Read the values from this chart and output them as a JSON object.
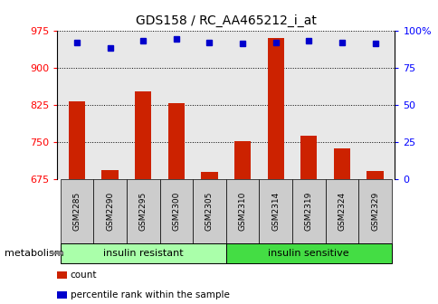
{
  "title": "GDS158 / RC_AA465212_i_at",
  "samples": [
    "GSM2285",
    "GSM2290",
    "GSM2295",
    "GSM2300",
    "GSM2305",
    "GSM2310",
    "GSM2314",
    "GSM2319",
    "GSM2324",
    "GSM2329"
  ],
  "counts": [
    833,
    693,
    853,
    828,
    690,
    752,
    960,
    762,
    737,
    692
  ],
  "percentiles": [
    92,
    88,
    93,
    94,
    92,
    91,
    92,
    93,
    92,
    91
  ],
  "ylim_left": [
    675,
    975
  ],
  "ylim_right": [
    0,
    100
  ],
  "yticks_left": [
    675,
    750,
    825,
    900,
    975
  ],
  "yticks_right": [
    0,
    25,
    50,
    75,
    100
  ],
  "groups": [
    {
      "label": "insulin resistant",
      "start": 0,
      "end": 5,
      "color": "#aaffaa"
    },
    {
      "label": "insulin sensitive",
      "start": 5,
      "end": 10,
      "color": "#44dd44"
    }
  ],
  "bar_color": "#cc2200",
  "dot_color": "#0000cc",
  "grid_color": "#000000",
  "background_color": "#ffffff",
  "bar_width": 0.5,
  "plot_bg_color": "#e8e8e8",
  "metabolism_label": "metabolism",
  "legend_items": [
    {
      "color": "#cc2200",
      "label": "count"
    },
    {
      "color": "#0000cc",
      "label": "percentile rank within the sample"
    }
  ]
}
